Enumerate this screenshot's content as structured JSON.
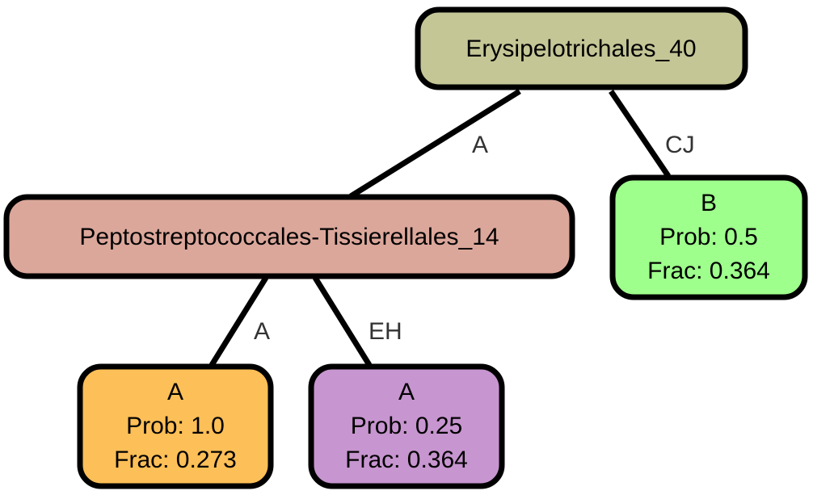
{
  "nodes": {
    "root": {
      "label": "Erysipelotrichales_40",
      "color": "#c5c696"
    },
    "mid": {
      "label": "Peptostreptococcales-Tissierellales_14",
      "color": "#dca79b"
    },
    "leaf_b": {
      "lines": [
        "B",
        "Prob: 0.5",
        "Frac: 0.364"
      ],
      "color": "#9eff8c"
    },
    "leaf_a1": {
      "lines": [
        "A",
        "Prob: 1.0",
        "Frac: 0.273"
      ],
      "color": "#fdbf57"
    },
    "leaf_a2": {
      "lines": [
        "A",
        "Prob: 0.25",
        "Frac: 0.364"
      ],
      "color": "#c795cf"
    }
  },
  "edges": {
    "root_mid": "A",
    "root_leaf_b": "CJ",
    "mid_leaf_a1": "A",
    "mid_leaf_a2": "EH"
  }
}
